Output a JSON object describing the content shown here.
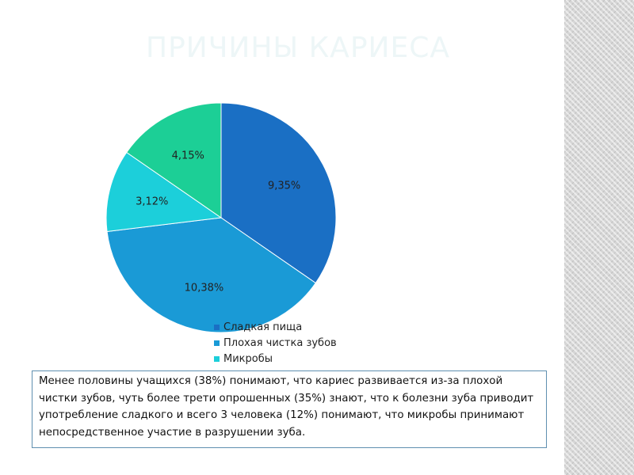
{
  "slide": {
    "title": "Причины кариеса",
    "caption": "Менее половины учащихся (38%) понимают, что кариес развивается из-за плохой чистки зубов, чуть более трети опрошенных (35%) знают, что к болезни зуба приводит употребление сладкого и всего 3 человека (12%) понимают, что микробы принимают непосредственное участие в разрушении зуба."
  },
  "chart_data": {
    "type": "pie",
    "title": "",
    "categories": [
      "Сладкая пища",
      "Плохая чистка зубов",
      "Микробы",
      ""
    ],
    "values": [
      9.35,
      10.38,
      3.12,
      4.15
    ],
    "data_labels": [
      "9,35%",
      "10,38%",
      "3,12%",
      "4,15%"
    ],
    "colors": [
      "#1a6fc4",
      "#1a9ad6",
      "#1ccfda",
      "#1ccf96"
    ],
    "legend": {
      "position": "bottom",
      "entries": [
        "Сладкая пища",
        "Плохая чистка зубов",
        "Микробы"
      ]
    },
    "start_angle_deg": 0,
    "direction": "clockwise"
  }
}
